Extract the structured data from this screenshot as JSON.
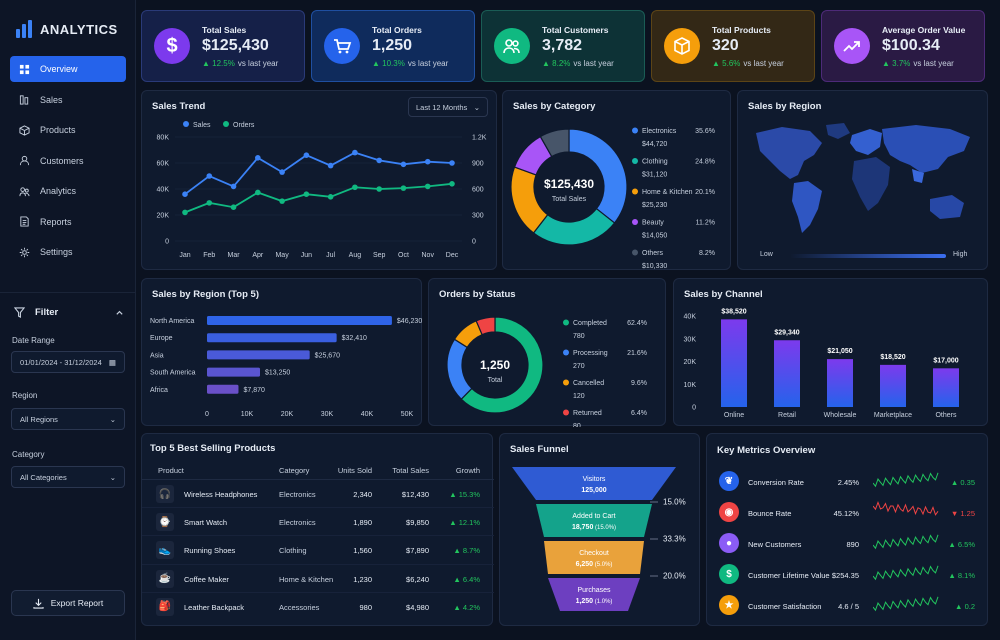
{
  "app": {
    "title": "ANALYTICS"
  },
  "nav": [
    {
      "label": "Overview",
      "icon": "grid-icon"
    },
    {
      "label": "Sales",
      "icon": "sales-icon"
    },
    {
      "label": "Products",
      "icon": "box-icon"
    },
    {
      "label": "Customers",
      "icon": "user-icon"
    },
    {
      "label": "Analytics",
      "icon": "analytics-icon"
    },
    {
      "label": "Reports",
      "icon": "report-icon"
    },
    {
      "label": "Settings",
      "icon": "gear-icon"
    }
  ],
  "filter": {
    "title": "Filter",
    "date_label": "Date Range",
    "date_value": "01/01/2024 - 31/12/2024",
    "region_label": "Region",
    "region_value": "All Regions",
    "category_label": "Category",
    "category_value": "All Categories"
  },
  "export_label": "Export Report",
  "kpis": [
    {
      "title": "Total Sales",
      "value": "$125,430",
      "change": "12.5%",
      "suffix": "vs last year",
      "color": "#7c3aed",
      "icon": "dollar-icon"
    },
    {
      "title": "Total Orders",
      "value": "1,250",
      "change": "10.3%",
      "suffix": "vs last year",
      "color": "#2563eb",
      "icon": "cart-icon"
    },
    {
      "title": "Total Customers",
      "value": "3,782",
      "change": "8.2%",
      "suffix": "vs last year",
      "color": "#10b981",
      "icon": "users-icon"
    },
    {
      "title": "Total Products",
      "value": "320",
      "change": "5.6%",
      "suffix": "vs last year",
      "color": "#f59e0b",
      "icon": "box-icon"
    },
    {
      "title": "Average Order Value",
      "value": "$100.34",
      "change": "3.7%",
      "suffix": "vs last year",
      "color": "#a855f7",
      "icon": "trend-icon"
    }
  ],
  "sales_trend": {
    "title": "Sales Trend",
    "period": "Last 12 Months",
    "legend": [
      "Sales",
      "Orders"
    ]
  },
  "category": {
    "title": "Sales by Category",
    "center_value": "$125,430",
    "center_label": "Total Sales",
    "items": [
      {
        "name": "Electronics",
        "pct": "35.6%",
        "value": "$44,720",
        "color": "#3b82f6"
      },
      {
        "name": "Clothing",
        "pct": "24.8%",
        "value": "$31,120",
        "color": "#14b8a6"
      },
      {
        "name": "Home & Kitchen",
        "pct": "20.1%",
        "value": "$25,230",
        "color": "#f59e0b"
      },
      {
        "name": "Beauty",
        "pct": "11.2%",
        "value": "$14,050",
        "color": "#a855f7"
      },
      {
        "name": "Others",
        "pct": "8.2%",
        "value": "$10,330",
        "color": "#475569"
      }
    ]
  },
  "region_map": {
    "title": "Sales by Region",
    "low": "Low",
    "high": "High"
  },
  "region_bars": {
    "title": "Sales by Region (Top 5)"
  },
  "status": {
    "title": "Orders by Status",
    "center_value": "1,250",
    "center_label": "Total",
    "items": [
      {
        "name": "Completed",
        "count": "780",
        "pct": "62.4%",
        "color": "#10b981"
      },
      {
        "name": "Processing",
        "count": "270",
        "pct": "21.6%",
        "color": "#3b82f6"
      },
      {
        "name": "Cancelled",
        "count": "120",
        "pct": "9.6%",
        "color": "#f59e0b"
      },
      {
        "name": "Returned",
        "count": "80",
        "pct": "6.4%",
        "color": "#ef4444"
      }
    ]
  },
  "channel": {
    "title": "Sales by Channel"
  },
  "products": {
    "title": "Top 5 Best Selling Products",
    "headers": [
      "Product",
      "Category",
      "Units Sold",
      "Total Sales",
      "Growth"
    ],
    "rows": [
      {
        "icon": "headphones-icon",
        "name": "Wireless Headphones",
        "category": "Electronics",
        "units": "2,340",
        "sales": "$12,430",
        "growth": "15.3%"
      },
      {
        "icon": "watch-icon",
        "name": "Smart Watch",
        "category": "Electronics",
        "units": "1,890",
        "sales": "$9,850",
        "growth": "12.1%"
      },
      {
        "icon": "shoe-icon",
        "name": "Running Shoes",
        "category": "Clothing",
        "units": "1,560",
        "sales": "$7,890",
        "growth": "8.7%"
      },
      {
        "icon": "coffee-icon",
        "name": "Coffee Maker",
        "category": "Home & Kitchen",
        "units": "1,230",
        "sales": "$6,240",
        "growth": "6.4%"
      },
      {
        "icon": "backpack-icon",
        "name": "Leather Backpack",
        "category": "Accessories",
        "units": "980",
        "sales": "$4,980",
        "growth": "4.2%"
      }
    ]
  },
  "funnel": {
    "title": "Sales Funnel",
    "stages": [
      {
        "name": "Visitors",
        "value": "125,000",
        "pct": "",
        "conv": "15.0%",
        "color": "#2f5bd3"
      },
      {
        "name": "Added to Cart",
        "value": "18,750",
        "pct": "(15.0%)",
        "conv": "33.3%",
        "color": "#14a38b"
      },
      {
        "name": "Checkout",
        "value": "6,250",
        "pct": "(5.0%)",
        "conv": "20.0%",
        "color": "#e9a23b"
      },
      {
        "name": "Purchases",
        "value": "1,250",
        "pct": "(1.0%)",
        "conv": "",
        "color": "#6d3fc0"
      }
    ]
  },
  "metrics": {
    "title": "Key Metrics Overview",
    "rows": [
      {
        "icon": "leaf-icon",
        "name": "Conversion Rate",
        "value": "2.45%",
        "change": "0.35",
        "dir": "up",
        "color": "#2563eb"
      },
      {
        "icon": "eye-icon",
        "name": "Bounce Rate",
        "value": "45.12%",
        "change": "1.25",
        "dir": "down",
        "color": "#ef4444"
      },
      {
        "icon": "person-icon",
        "name": "New Customers",
        "value": "890",
        "change": "6.5%",
        "dir": "up",
        "color": "#8b5cf6"
      },
      {
        "icon": "dollar-icon",
        "name": "Customer Lifetime Value",
        "value": "$254.35",
        "change": "8.1%",
        "dir": "up",
        "color": "#10b981"
      },
      {
        "icon": "star-icon",
        "name": "Customer Satisfaction",
        "value": "4.6 / 5",
        "change": "0.2",
        "dir": "up",
        "color": "#f59e0b"
      }
    ]
  },
  "chart_data": [
    {
      "type": "line",
      "title": "Sales Trend",
      "categories": [
        "Jan",
        "Feb",
        "Mar",
        "Apr",
        "May",
        "Jun",
        "Jul",
        "Aug",
        "Sep",
        "Oct",
        "Nov",
        "Dec"
      ],
      "series": [
        {
          "name": "Sales",
          "axis": "left",
          "values": [
            36000,
            50000,
            42000,
            64000,
            53000,
            66000,
            58000,
            68000,
            62000,
            59000,
            61000,
            60000
          ]
        },
        {
          "name": "Orders",
          "axis": "right",
          "values": [
            330,
            440,
            390,
            560,
            460,
            540,
            510,
            620,
            600,
            610,
            630,
            660
          ]
        }
      ],
      "y_left": {
        "ticks": [
          "0",
          "20K",
          "40K",
          "60K",
          "80K"
        ],
        "max": 80000
      },
      "y_right": {
        "ticks": [
          "0",
          "300",
          "600",
          "900",
          "1.2K"
        ],
        "max": 1200
      }
    },
    {
      "type": "pie",
      "title": "Sales by Category",
      "labels": [
        "Electronics",
        "Clothing",
        "Home & Kitchen",
        "Beauty",
        "Others"
      ],
      "values": [
        35.6,
        24.8,
        20.1,
        11.2,
        8.2
      ]
    },
    {
      "type": "bar",
      "title": "Sales by Region (Top 5)",
      "orientation": "horizontal",
      "categories": [
        "North America",
        "Europe",
        "Asia",
        "South America",
        "Africa"
      ],
      "values": [
        46230,
        32410,
        25670,
        13250,
        7870
      ],
      "labels": [
        "$46,230",
        "$32,410",
        "$25,670",
        "$13,250",
        "$7,870"
      ],
      "x_ticks": [
        "0",
        "10K",
        "20K",
        "30K",
        "40K",
        "50K"
      ],
      "xlim": [
        0,
        50000
      ]
    },
    {
      "type": "pie",
      "title": "Orders by Status",
      "labels": [
        "Completed",
        "Processing",
        "Cancelled",
        "Returned"
      ],
      "values": [
        62.4,
        21.6,
        9.6,
        6.4
      ]
    },
    {
      "type": "bar",
      "title": "Sales by Channel",
      "categories": [
        "Online",
        "Retail",
        "Wholesale",
        "Marketplace",
        "Others"
      ],
      "values": [
        38520,
        29340,
        21050,
        18520,
        17000
      ],
      "labels": [
        "$38,520",
        "$29,340",
        "$21,050",
        "$18,520",
        "$17,000"
      ],
      "y_ticks": [
        "0",
        "10K",
        "20K",
        "30K",
        "40K"
      ],
      "ylim": [
        0,
        40000
      ]
    }
  ]
}
